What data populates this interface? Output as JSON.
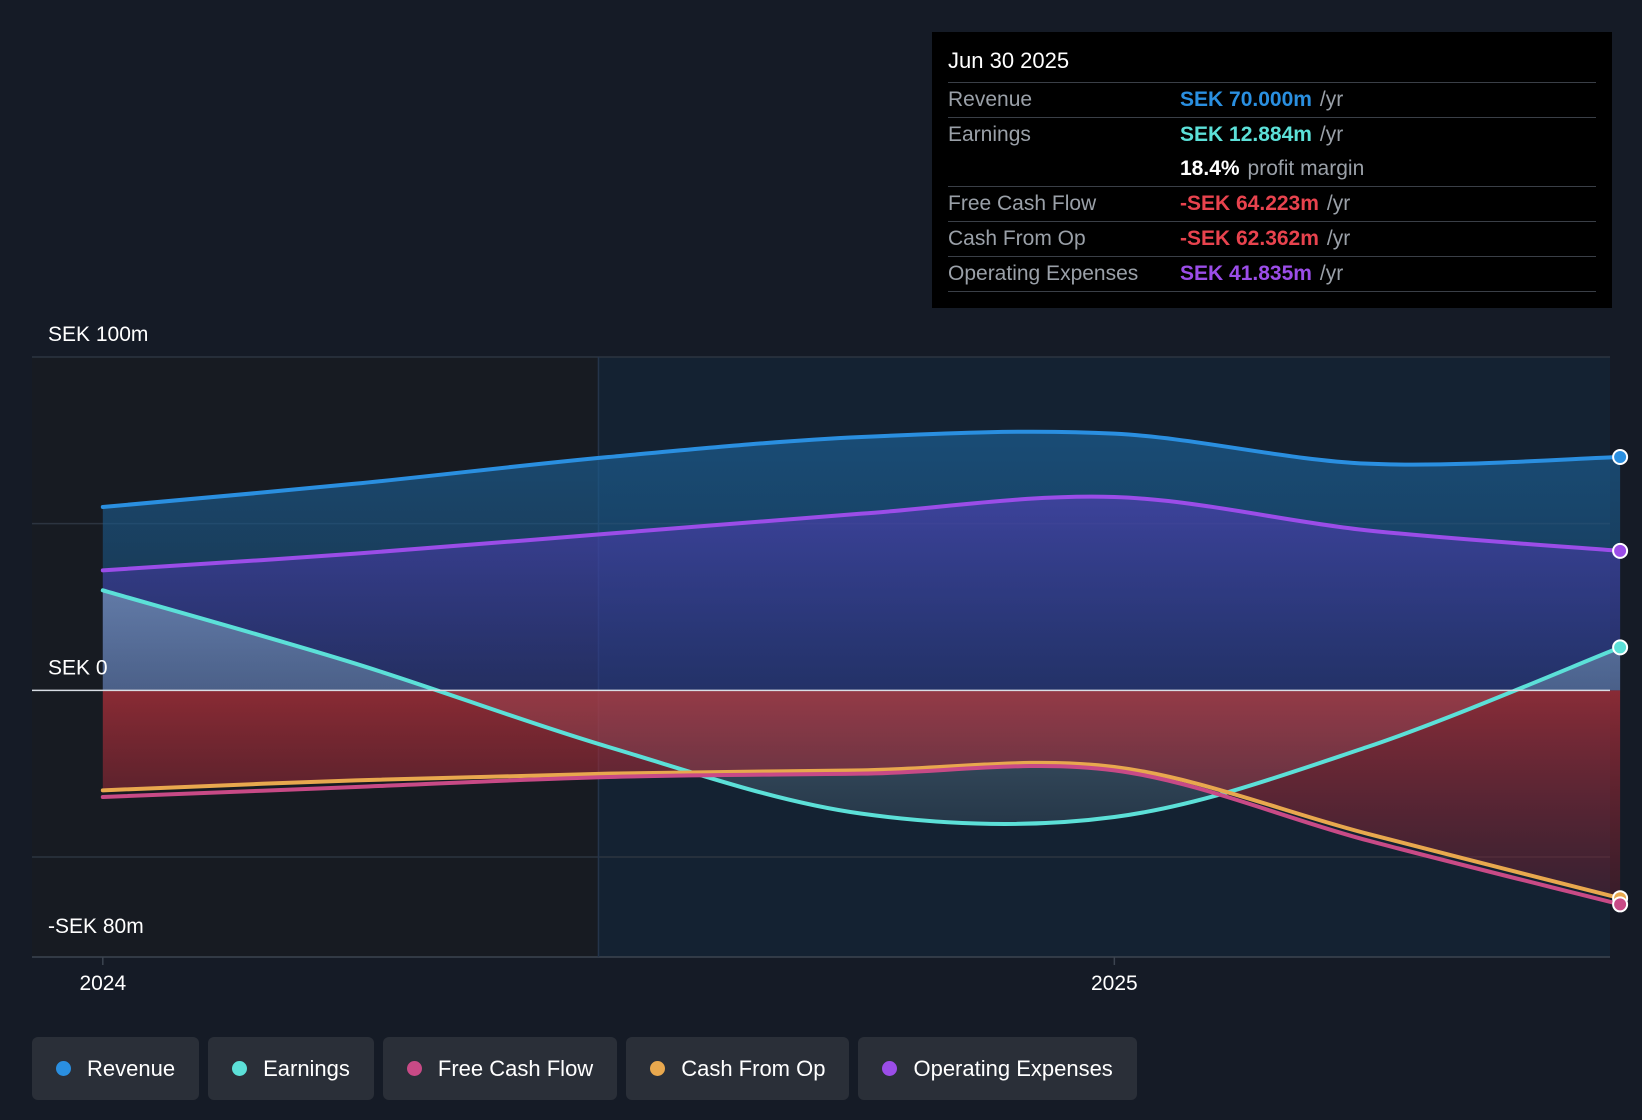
{
  "chart_data": {
    "type": "area",
    "x": [
      2024.0,
      2024.25,
      2024.5,
      2024.75,
      2025.0,
      2025.25,
      2025.5
    ],
    "x_range": [
      2023.93,
      2025.49
    ],
    "y_range": [
      -80,
      100
    ],
    "y_ticks": [
      {
        "value": 100,
        "label": "SEK 100m"
      },
      {
        "value": 0,
        "label": "SEK 0"
      },
      {
        "value": -80,
        "label": "-SEK 80m"
      }
    ],
    "x_ticks": [
      {
        "value": 2024.0,
        "label": "2024"
      },
      {
        "value": 2025.0,
        "label": "2025"
      }
    ],
    "shaded_until": 2024.49,
    "series": [
      {
        "name": "Revenue",
        "color": "#2a8fe0",
        "values": [
          55,
          62,
          70,
          76,
          77,
          68,
          70
        ]
      },
      {
        "name": "Operating Expenses",
        "color": "#9b4de8",
        "values": [
          36,
          41,
          47,
          53,
          58,
          48,
          41.835
        ]
      },
      {
        "name": "Earnings",
        "color": "#5ce0d8",
        "values": [
          30,
          8,
          -17,
          -37,
          -38,
          -17,
          12.884
        ]
      },
      {
        "name": "Cash From Op",
        "color": "#e8a84e",
        "values": [
          -30,
          -27,
          -25,
          -24,
          -23,
          -43,
          -62.362
        ]
      },
      {
        "name": "Free Cash Flow",
        "color": "#c84a86",
        "values": [
          -32,
          -29,
          -26,
          -25,
          -24,
          -45,
          -64.223
        ]
      }
    ]
  },
  "tooltip": {
    "date": "Jun 30 2025",
    "rows": [
      {
        "label": "Revenue",
        "value": "SEK 70.000m",
        "unit": "/yr",
        "color": "#2a8fe0"
      },
      {
        "label": "Earnings",
        "value": "SEK 12.884m",
        "unit": "/yr",
        "color": "#5ce0d8"
      },
      {
        "label": "",
        "value": "18.4%",
        "unit": "profit margin",
        "color": "#ffffff"
      },
      {
        "label": "Free Cash Flow",
        "value": "-SEK 64.223m",
        "unit": "/yr",
        "color": "#e8434e"
      },
      {
        "label": "Cash From Op",
        "value": "-SEK 62.362m",
        "unit": "/yr",
        "color": "#e8434e"
      },
      {
        "label": "Operating Expenses",
        "value": "SEK 41.835m",
        "unit": "/yr",
        "color": "#9b4de8"
      }
    ]
  },
  "legend": [
    {
      "label": "Revenue",
      "color": "#2a8fe0"
    },
    {
      "label": "Earnings",
      "color": "#5ce0d8"
    },
    {
      "label": "Free Cash Flow",
      "color": "#c84a86"
    },
    {
      "label": "Cash From Op",
      "color": "#e8a84e"
    },
    {
      "label": "Operating Expenses",
      "color": "#9b4de8"
    }
  ]
}
